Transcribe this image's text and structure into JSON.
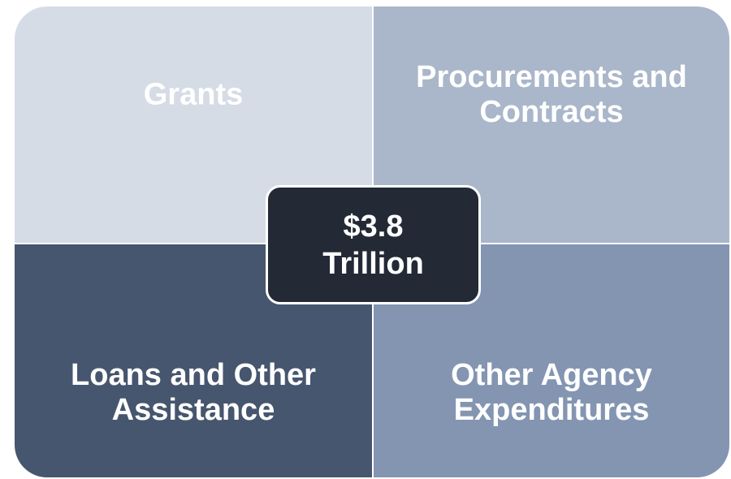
{
  "quadrants": [
    {
      "label": "Grants"
    },
    {
      "label": "Procurements and Contracts"
    },
    {
      "label": "Loans and Other Assistance"
    },
    {
      "label": "Other Agency Expenditures"
    }
  ],
  "center": {
    "label": "$3.8 Trillion"
  }
}
